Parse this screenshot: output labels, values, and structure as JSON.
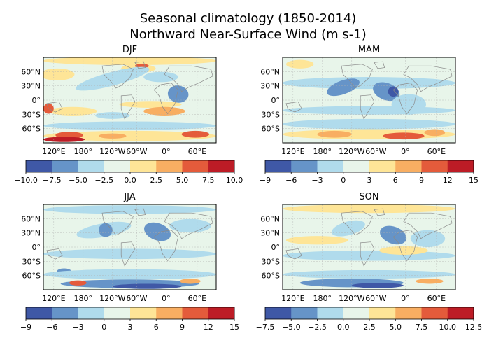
{
  "figure": {
    "title_line1": "Seasonal climatology  (1850-2014)",
    "title_line2": "Northward Near-Surface Wind (m s-1)"
  },
  "colors": {
    "palette": [
      "#3f58a6",
      "#6694c8",
      "#b0dbec",
      "#e8f5ea",
      "#fee597",
      "#f8ae62",
      "#e45b3b",
      "#bd1c26"
    ],
    "land_outline": "#8a8a8a",
    "grid": "#b0b0b0"
  },
  "chart_data": [
    {
      "type": "heatmap",
      "title": "DJF",
      "map": "global wind field, Pacific-centred equirectangular projection",
      "lon_ticks": [
        "120°E",
        "180°",
        "120°W",
        "60°W",
        "0°",
        "60°E"
      ],
      "lat_ticks": [
        "60°N",
        "30°N",
        "0°",
        "30°S",
        "60°S"
      ],
      "colorbar": {
        "levels": [
          -10.0,
          -7.5,
          -5.0,
          -2.5,
          0.0,
          2.5,
          5.0,
          7.5,
          10.0
        ],
        "tick_labels": [
          "−10.0",
          "−7.5",
          "−5.0",
          "−2.5",
          "0.0",
          "2.5",
          "5.0",
          "7.5",
          "10.0"
        ]
      }
    },
    {
      "type": "heatmap",
      "title": "MAM",
      "map": "global wind field, Pacific-centred equirectangular projection",
      "lon_ticks": [
        "120°E",
        "180°",
        "120°W",
        "60°W",
        "0°",
        "60°E"
      ],
      "lat_ticks": [
        "60°N",
        "30°N",
        "0°",
        "30°S",
        "60°S"
      ],
      "colorbar": {
        "levels": [
          -9,
          -6,
          -3,
          0,
          3,
          6,
          9,
          12,
          15
        ],
        "tick_labels": [
          "−9",
          "−6",
          "−3",
          "0",
          "3",
          "6",
          "9",
          "12",
          "15"
        ]
      }
    },
    {
      "type": "heatmap",
      "title": "JJA",
      "map": "global wind field, Pacific-centred equirectangular projection",
      "lon_ticks": [
        "120°E",
        "180°",
        "120°W",
        "60°W",
        "0°",
        "60°E"
      ],
      "lat_ticks": [
        "60°N",
        "30°N",
        "0°",
        "30°S",
        "60°S"
      ],
      "colorbar": {
        "levels": [
          -9,
          -6,
          -3,
          0,
          3,
          6,
          9,
          12,
          15
        ],
        "tick_labels": [
          "−9",
          "−6",
          "−3",
          "0",
          "3",
          "6",
          "9",
          "12",
          "15"
        ]
      }
    },
    {
      "type": "heatmap",
      "title": "SON",
      "map": "global wind field, Pacific-centred equirectangular projection",
      "lon_ticks": [
        "120°E",
        "180°",
        "120°W",
        "60°W",
        "0°",
        "60°E"
      ],
      "lat_ticks": [
        "60°N",
        "30°N",
        "0°",
        "30°S",
        "60°S"
      ],
      "colorbar": {
        "levels": [
          -7.5,
          -5.0,
          -2.5,
          0.0,
          2.5,
          5.0,
          7.5,
          10.0,
          12.5
        ],
        "tick_labels": [
          "−7.5",
          "−5.0",
          "−2.5",
          "0.0",
          "2.5",
          "5.0",
          "7.5",
          "10.0",
          "12.5"
        ]
      }
    }
  ]
}
